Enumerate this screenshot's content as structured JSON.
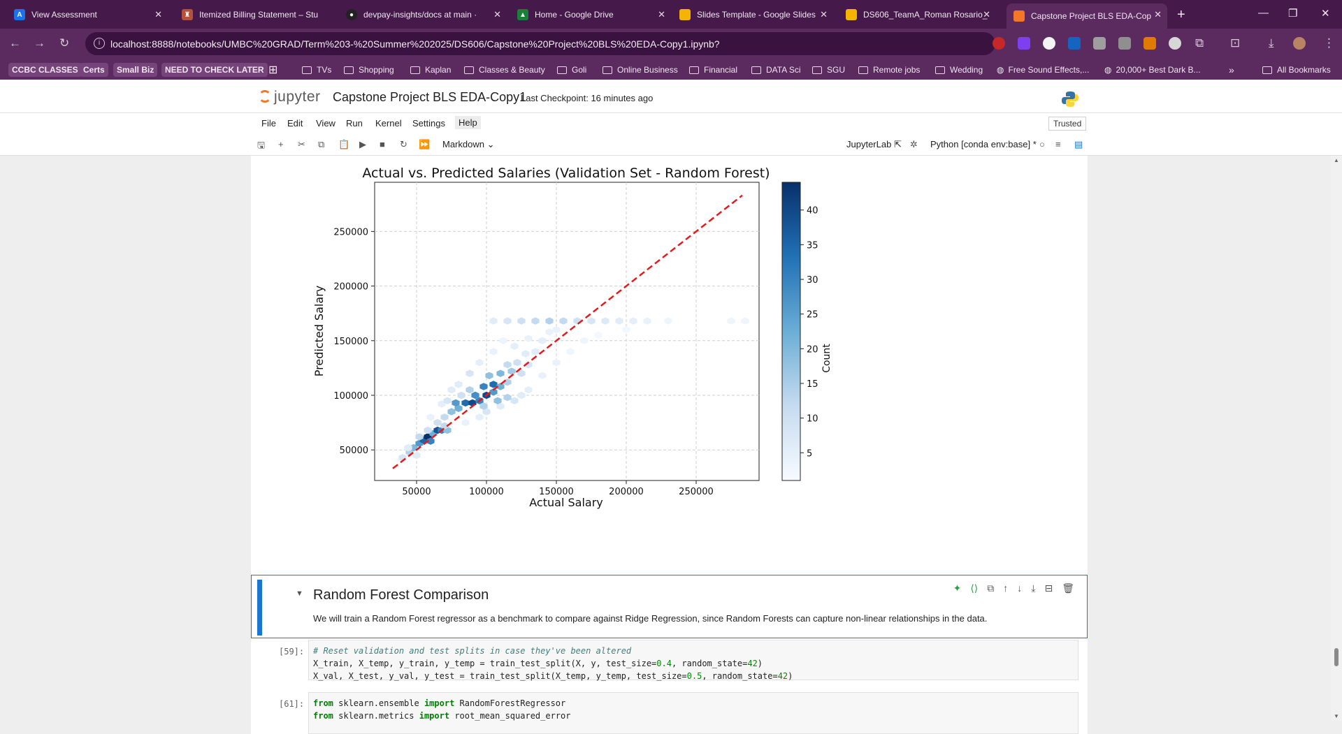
{
  "browser": {
    "tabs": [
      {
        "title": "View Assessment",
        "icon": "assessment-favicon",
        "color": "#1a73e8"
      },
      {
        "title": "Itemized Billing Statement – Stu",
        "icon": "billing-favicon",
        "color": "#b5523b"
      },
      {
        "title": "devpay-insights/docs at main ·",
        "icon": "github-favicon",
        "color": "#222222"
      },
      {
        "title": "Home - Google Drive",
        "icon": "drive-favicon",
        "color": "#188038"
      },
      {
        "title": "Slides Template - Google Slides",
        "icon": "slides-favicon",
        "color": "#f4b400"
      },
      {
        "title": "DS606_TeamA_Roman Rosario_",
        "icon": "slides-favicon",
        "color": "#f4b400"
      },
      {
        "title": "Capstone Project BLS EDA-Cop",
        "icon": "jupyter-favicon",
        "color": "#f37726"
      }
    ],
    "address": "localhost:8888/notebooks/UMBC%20GRAD/Term%203-%20Summer%202025/DS606/Capstone%20Project%20BLS%20EDA-Copy1.ipynb?",
    "bookmarks": [
      {
        "label": "CCBC CLASSES",
        "type": "pill"
      },
      {
        "label": "Certs",
        "type": "pill"
      },
      {
        "label": "Small Biz",
        "type": "pill"
      },
      {
        "label": "NEED TO CHECK LATER",
        "type": "pill"
      },
      {
        "label": "TVs",
        "type": "folder"
      },
      {
        "label": "Shopping",
        "type": "folder"
      },
      {
        "label": "Kaplan",
        "type": "folder"
      },
      {
        "label": "Classes & Beauty",
        "type": "folder"
      },
      {
        "label": "Goli",
        "type": "folder"
      },
      {
        "label": "Online Business",
        "type": "folder"
      },
      {
        "label": "Financial",
        "type": "folder"
      },
      {
        "label": "DATA Sci",
        "type": "folder"
      },
      {
        "label": "SGU",
        "type": "folder"
      },
      {
        "label": "Remote jobs",
        "type": "folder"
      },
      {
        "label": "Wedding",
        "type": "folder"
      },
      {
        "label": "Free Sound Effects,...",
        "type": "link"
      },
      {
        "label": "20,000+ Best Dark B...",
        "type": "link"
      }
    ],
    "all_bookmarks": "All Bookmarks",
    "more_bookmarks": "»"
  },
  "jupyter": {
    "logo": "jupyter",
    "notebook_title": "Capstone Project BLS EDA-Copy1",
    "checkpoint": "Last Checkpoint: 16 minutes ago",
    "menus": [
      "File",
      "Edit",
      "View",
      "Run",
      "Kernel",
      "Settings",
      "Help"
    ],
    "trusted": "Trusted",
    "cell_type": "Markdown",
    "jupyterlab_link": "JupyterLab",
    "kernel": "Python [conda env:base] *"
  },
  "chart_data": {
    "type": "heatmap",
    "title": "Actual vs. Predicted Salaries (Validation Set - Random Forest)",
    "xlabel": "Actual Salary",
    "ylabel": "Predicted Salary",
    "x_ticks": [
      50000,
      100000,
      150000,
      200000,
      250000
    ],
    "y_ticks": [
      50000,
      100000,
      150000,
      200000,
      250000
    ],
    "xlim": [
      20000,
      295000
    ],
    "ylim": [
      22000,
      295000
    ],
    "colorbar": {
      "label": "Count",
      "ticks": [
        5,
        10,
        15,
        20,
        25,
        30,
        35,
        40
      ],
      "range": [
        1,
        44
      ]
    },
    "reference_line": {
      "from": [
        33000,
        33000
      ],
      "to": [
        283000,
        283000
      ],
      "color": "#e41a1c",
      "style": "dashed"
    },
    "grid": true,
    "hexbins": [
      [
        40000,
        43000,
        8
      ],
      [
        45000,
        48000,
        14
      ],
      [
        48000,
        52000,
        20
      ],
      [
        52000,
        56000,
        26
      ],
      [
        55000,
        59000,
        35
      ],
      [
        58000,
        62000,
        44
      ],
      [
        60000,
        58000,
        30
      ],
      [
        62000,
        65000,
        22
      ],
      [
        65000,
        68000,
        38
      ],
      [
        68000,
        68000,
        30
      ],
      [
        72000,
        68000,
        18
      ],
      [
        58000,
        68000,
        10
      ],
      [
        52000,
        62000,
        12
      ],
      [
        50000,
        45000,
        6
      ],
      [
        44000,
        52000,
        6
      ],
      [
        70000,
        80000,
        12
      ],
      [
        75000,
        85000,
        18
      ],
      [
        80000,
        88000,
        22
      ],
      [
        78000,
        93000,
        26
      ],
      [
        85000,
        93000,
        34
      ],
      [
        90000,
        93000,
        40
      ],
      [
        95000,
        95000,
        30
      ],
      [
        92000,
        100000,
        28
      ],
      [
        100000,
        100000,
        40
      ],
      [
        105000,
        103000,
        26
      ],
      [
        98000,
        108000,
        30
      ],
      [
        105000,
        110000,
        34
      ],
      [
        110000,
        108000,
        22
      ],
      [
        115000,
        112000,
        14
      ],
      [
        88000,
        105000,
        14
      ],
      [
        82000,
        100000,
        10
      ],
      [
        102000,
        118000,
        18
      ],
      [
        110000,
        120000,
        20
      ],
      [
        118000,
        122000,
        16
      ],
      [
        125000,
        120000,
        10
      ],
      [
        115000,
        128000,
        12
      ],
      [
        122000,
        130000,
        10
      ],
      [
        130000,
        128000,
        8
      ],
      [
        128000,
        138000,
        6
      ],
      [
        135000,
        140000,
        6
      ],
      [
        120000,
        145000,
        5
      ],
      [
        140000,
        150000,
        5
      ],
      [
        145000,
        158000,
        4
      ],
      [
        130000,
        152000,
        4
      ],
      [
        150000,
        160000,
        4
      ],
      [
        105000,
        168000,
        6
      ],
      [
        115000,
        168000,
        8
      ],
      [
        125000,
        168000,
        10
      ],
      [
        135000,
        168000,
        12
      ],
      [
        145000,
        168000,
        14
      ],
      [
        155000,
        168000,
        12
      ],
      [
        165000,
        168000,
        10
      ],
      [
        175000,
        168000,
        8
      ],
      [
        185000,
        168000,
        7
      ],
      [
        195000,
        168000,
        6
      ],
      [
        205000,
        168000,
        5
      ],
      [
        215000,
        168000,
        4
      ],
      [
        230000,
        168000,
        3
      ],
      [
        275000,
        168000,
        3
      ],
      [
        285000,
        168000,
        3
      ],
      [
        95000,
        130000,
        5
      ],
      [
        88000,
        120000,
        8
      ],
      [
        75000,
        105000,
        6
      ],
      [
        68000,
        92000,
        5
      ],
      [
        60000,
        80000,
        4
      ],
      [
        120000,
        95000,
        8
      ],
      [
        125000,
        100000,
        6
      ],
      [
        130000,
        105000,
        5
      ],
      [
        140000,
        118000,
        4
      ],
      [
        100000,
        85000,
        8
      ],
      [
        110000,
        90000,
        6
      ],
      [
        95000,
        80000,
        5
      ],
      [
        85000,
        75000,
        4
      ],
      [
        150000,
        130000,
        4
      ],
      [
        160000,
        140000,
        3
      ],
      [
        170000,
        150000,
        3
      ],
      [
        180000,
        155000,
        2
      ],
      [
        200000,
        160000,
        2
      ],
      [
        105000,
        140000,
        4
      ],
      [
        112000,
        150000,
        3
      ],
      [
        72000,
        95000,
        8
      ],
      [
        80000,
        110000,
        6
      ],
      [
        65000,
        75000,
        10
      ],
      [
        70000,
        72000,
        12
      ],
      [
        115000,
        98000,
        14
      ],
      [
        108000,
        95000,
        18
      ],
      [
        98000,
        90000,
        14
      ]
    ]
  },
  "markdown_cell": {
    "heading": "Random Forest Comparison",
    "text": "We will train a Random Forest regressor as a benchmark to compare against Ridge Regression, since Random Forests can capture non-linear relationships in the data."
  },
  "code_cells": [
    {
      "prompt": "[59]:"
    },
    {
      "prompt": "[61]:"
    }
  ]
}
